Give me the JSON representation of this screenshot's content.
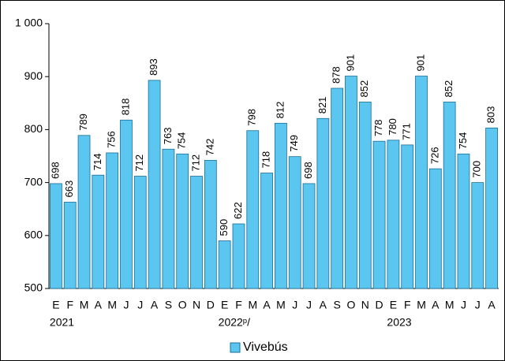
{
  "chart_data": {
    "type": "bar",
    "categories": [
      "E",
      "F",
      "M",
      "A",
      "M",
      "J",
      "J",
      "A",
      "S",
      "O",
      "N",
      "D",
      "E",
      "F",
      "M",
      "A",
      "M",
      "J",
      "J",
      "A",
      "S",
      "O",
      "N",
      "D",
      "E",
      "F",
      "M",
      "A",
      "M",
      "J",
      "J",
      "A"
    ],
    "group_labels": [
      "2021",
      null,
      null,
      null,
      null,
      null,
      null,
      null,
      null,
      null,
      null,
      null,
      "2022ᵖ/",
      null,
      null,
      null,
      null,
      null,
      null,
      null,
      null,
      null,
      null,
      null,
      "2023",
      null,
      null,
      null,
      null,
      null,
      null,
      null
    ],
    "series": [
      {
        "name": "Vivebús",
        "color": "#5bc6f0",
        "values": [
          698,
          663,
          789,
          714,
          756,
          818,
          712,
          893,
          763,
          754,
          712,
          742,
          590,
          622,
          798,
          718,
          812,
          749,
          698,
          821,
          878,
          901,
          852,
          778,
          780,
          771,
          901,
          726,
          852,
          754,
          700,
          803
        ]
      }
    ],
    "ylim": [
      500,
      1000
    ],
    "yticks": [
      500,
      600,
      700,
      800,
      900,
      {
        "value": 1000,
        "label": "1 000"
      }
    ],
    "grid": false,
    "legend": "bottom"
  }
}
